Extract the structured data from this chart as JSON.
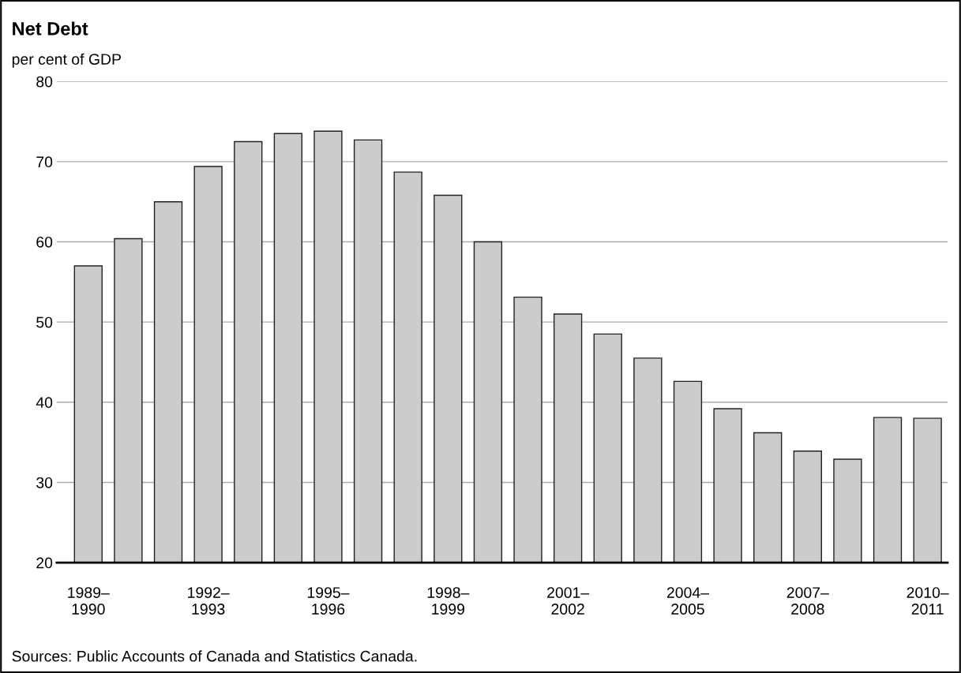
{
  "chart_data": {
    "type": "bar",
    "title": "Net Debt",
    "ylabel": "per cent of GDP",
    "categories": [
      "1989–\n1990",
      null,
      null,
      "1992–\n1993",
      null,
      null,
      "1995–\n1996",
      null,
      null,
      "1998–\n1999",
      null,
      null,
      "2001–\n2002",
      null,
      null,
      "2004–\n2005",
      null,
      null,
      "2007–\n2008",
      null,
      null,
      "2010–\n2011"
    ],
    "values": [
      57.0,
      60.4,
      65.0,
      69.4,
      72.5,
      73.5,
      73.8,
      72.7,
      68.7,
      65.8,
      60.0,
      53.1,
      51.0,
      48.5,
      45.5,
      42.6,
      39.2,
      36.2,
      33.9,
      32.9,
      38.1,
      38.0
    ],
    "color": "#cccccc",
    "ylim": [
      20,
      80
    ],
    "yticks": [
      20,
      30,
      40,
      50,
      60,
      70,
      80
    ],
    "grid": "y",
    "annotations": [
      "Sources: Public Accounts of Canada and Statistics Canada."
    ]
  }
}
